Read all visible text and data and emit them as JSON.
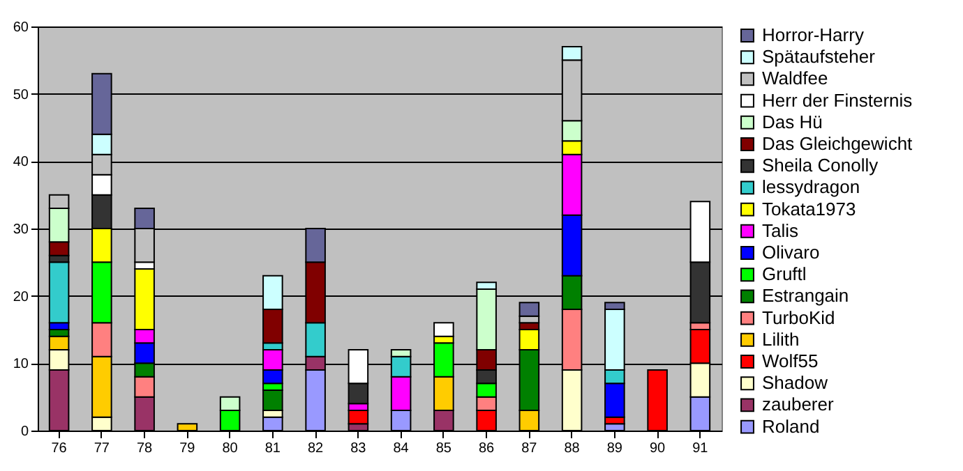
{
  "chart_data": {
    "type": "bar",
    "stacked": true,
    "categories": [
      "76",
      "77",
      "78",
      "79",
      "80",
      "81",
      "82",
      "83",
      "84",
      "85",
      "86",
      "87",
      "88",
      "89",
      "90",
      "91"
    ],
    "ylim": [
      0,
      60
    ],
    "yticks": [
      0,
      10,
      20,
      30,
      40,
      50,
      60
    ],
    "grid": "y",
    "legend": "right",
    "series": [
      {
        "name": "Roland",
        "color": "#9999ff",
        "values": [
          null,
          null,
          null,
          null,
          null,
          2,
          9,
          null,
          3,
          null,
          null,
          null,
          null,
          1,
          null,
          5
        ]
      },
      {
        "name": "zauberer",
        "color": "#993366",
        "values": [
          9,
          null,
          5,
          null,
          null,
          null,
          2,
          1,
          null,
          3,
          null,
          null,
          null,
          null,
          null,
          null
        ]
      },
      {
        "name": "Shadow",
        "color": "#ffffcc",
        "values": [
          3,
          2,
          null,
          null,
          null,
          1,
          null,
          null,
          null,
          null,
          null,
          null,
          9,
          null,
          null,
          5
        ]
      },
      {
        "name": "Wolf55",
        "color": "#ff0000",
        "values": [
          null,
          null,
          null,
          null,
          null,
          null,
          null,
          2,
          null,
          null,
          3,
          null,
          null,
          1,
          9,
          5
        ]
      },
      {
        "name": "Lilith",
        "color": "#ffcc00",
        "values": [
          2,
          9,
          null,
          1,
          null,
          null,
          null,
          null,
          null,
          5,
          null,
          3,
          null,
          null,
          null,
          null
        ]
      },
      {
        "name": "TurboKid",
        "color": "#ff8080",
        "values": [
          null,
          5,
          3,
          null,
          null,
          null,
          null,
          null,
          null,
          null,
          2,
          null,
          9,
          null,
          null,
          1
        ]
      },
      {
        "name": "Estrangain",
        "color": "#008000",
        "values": [
          1,
          null,
          2,
          null,
          null,
          3,
          null,
          null,
          null,
          null,
          null,
          9,
          5,
          null,
          null,
          null
        ]
      },
      {
        "name": "Gruftl",
        "color": "#00ff00",
        "values": [
          null,
          9,
          null,
          null,
          3,
          1,
          null,
          null,
          null,
          5,
          2,
          null,
          null,
          null,
          null,
          null
        ]
      },
      {
        "name": "Olivaro",
        "color": "#0000ff",
        "values": [
          1,
          null,
          3,
          null,
          null,
          2,
          null,
          null,
          null,
          null,
          null,
          null,
          9,
          5,
          null,
          null
        ]
      },
      {
        "name": "Talis",
        "color": "#ff00ff",
        "values": [
          null,
          null,
          2,
          null,
          null,
          3,
          null,
          1,
          5,
          null,
          null,
          null,
          9,
          null,
          null,
          null
        ]
      },
      {
        "name": "Tokata1973",
        "color": "#ffff00",
        "values": [
          null,
          5,
          9,
          null,
          null,
          null,
          null,
          null,
          null,
          1,
          null,
          3,
          2,
          null,
          null,
          null
        ]
      },
      {
        "name": "lessydragon",
        "color": "#33cccc",
        "values": [
          9,
          null,
          null,
          null,
          null,
          1,
          5,
          null,
          3,
          null,
          null,
          null,
          null,
          2,
          null,
          null
        ]
      },
      {
        "name": "Sheila Conolly",
        "color": "#333333",
        "values": [
          1,
          5,
          null,
          null,
          null,
          null,
          null,
          3,
          null,
          null,
          2,
          null,
          null,
          null,
          null,
          9
        ]
      },
      {
        "name": "Das Gleichgewicht",
        "color": "#800000",
        "values": [
          2,
          null,
          null,
          null,
          null,
          5,
          9,
          null,
          null,
          null,
          3,
          1,
          null,
          null,
          null,
          null
        ]
      },
      {
        "name": "Das Hü",
        "color": "#ccffcc",
        "values": [
          5,
          null,
          null,
          null,
          2,
          null,
          null,
          null,
          1,
          null,
          9,
          null,
          3,
          null,
          null,
          null
        ]
      },
      {
        "name": "Herr der Finsternis",
        "color": "#ffffff",
        "values": [
          null,
          3,
          1,
          null,
          null,
          null,
          null,
          5,
          null,
          2,
          null,
          null,
          null,
          null,
          null,
          9
        ]
      },
      {
        "name": "Waldfee",
        "color": "#c0c0c0",
        "values": [
          2,
          3,
          5,
          null,
          null,
          null,
          null,
          null,
          null,
          null,
          null,
          1,
          9,
          null,
          null,
          null
        ]
      },
      {
        "name": "Spätaufsteher",
        "color": "#ccffff",
        "values": [
          null,
          3,
          null,
          null,
          null,
          5,
          null,
          null,
          null,
          null,
          1,
          null,
          2,
          9,
          null,
          null
        ]
      },
      {
        "name": "Horror-Harry",
        "color": "#666699",
        "values": [
          null,
          9,
          3,
          null,
          null,
          null,
          5,
          null,
          null,
          null,
          null,
          2,
          null,
          1,
          null,
          null
        ]
      }
    ]
  }
}
